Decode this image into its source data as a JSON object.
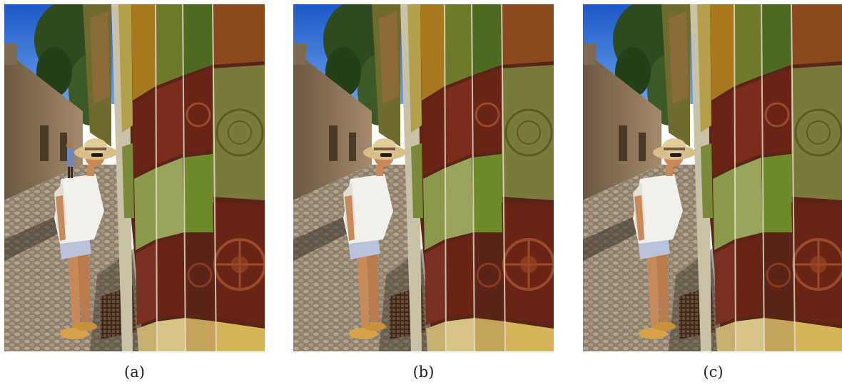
{
  "panels": [
    {
      "id": "a",
      "caption": "(a)",
      "variant": "original"
    },
    {
      "id": "b",
      "caption": "(b)",
      "variant": "edited-background-person-removed"
    },
    {
      "id": "c",
      "caption": "(c)",
      "variant": "edited-background-person-removed"
    }
  ],
  "colors": {
    "sky": "#2f6fd8",
    "foliage": "#2e4a1e",
    "building": "#8a7054",
    "cobblestone": "#8c7e6c",
    "tile_brown": "#6a2416",
    "tile_green": "#6e7a2a",
    "tile_ochre": "#a8781e",
    "shirt": "#f2f0ea",
    "hat": "#d8bf8a",
    "skin": "#c98a5a",
    "shoes": "#d7a24a",
    "shorts": "#b9c4dc"
  }
}
